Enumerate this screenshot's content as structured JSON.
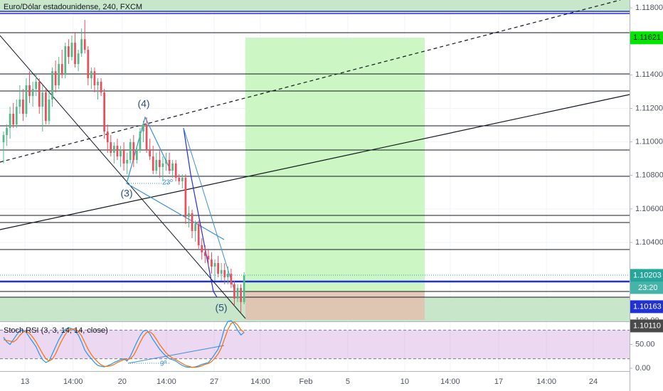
{
  "chart_data": [
    {
      "type": "candlestick",
      "title": "Euro/Dólar estadounidense, 240, FXCM",
      "up_color": "#53b987",
      "down_color": "#eb4d5c",
      "ohlc": [
        [
          1.10998,
          1.11062,
          1.10871,
          1.11041
        ],
        [
          1.11041,
          1.11104,
          1.10977,
          1.11083
        ],
        [
          1.11083,
          1.1121,
          1.11019,
          1.11168
        ],
        [
          1.11168,
          1.11232,
          1.11083,
          1.11104
        ],
        [
          1.11104,
          1.11253,
          1.11083,
          1.1121
        ],
        [
          1.1121,
          1.11338,
          1.11168,
          1.11253
        ],
        [
          1.11253,
          1.11316,
          1.11125,
          1.11168
        ],
        [
          1.11168,
          1.1138,
          1.11147,
          1.11338
        ],
        [
          1.11338,
          1.11422,
          1.11232,
          1.11274
        ],
        [
          1.11274,
          1.11359,
          1.1121,
          1.11316
        ],
        [
          1.11316,
          1.11401,
          1.11274,
          1.11359
        ],
        [
          1.11359,
          1.1138,
          1.11168,
          1.1121
        ],
        [
          1.1121,
          1.11338,
          1.11062,
          1.11295
        ],
        [
          1.11295,
          1.11316,
          1.11104,
          1.11125
        ],
        [
          1.11125,
          1.11295,
          1.11104,
          1.11253
        ],
        [
          1.11253,
          1.11444,
          1.1121,
          1.11422
        ],
        [
          1.11422,
          1.11486,
          1.11295,
          1.11338
        ],
        [
          1.11338,
          1.11507,
          1.11316,
          1.11465
        ],
        [
          1.11465,
          1.1155,
          1.1138,
          1.11401
        ],
        [
          1.11401,
          1.11592,
          1.1138,
          1.11571
        ],
        [
          1.11571,
          1.11613,
          1.11465,
          1.11507
        ],
        [
          1.11507,
          1.11635,
          1.11486,
          1.11592
        ],
        [
          1.11592,
          1.11656,
          1.11444,
          1.11465
        ],
        [
          1.11465,
          1.1155,
          1.11422,
          1.11528
        ],
        [
          1.11528,
          1.11677,
          1.11507,
          1.11613
        ],
        [
          1.11613,
          1.11728,
          1.11528,
          1.1155
        ],
        [
          1.1155,
          1.11571,
          1.11338,
          1.1138
        ],
        [
          1.1138,
          1.11444,
          1.11316,
          1.11422
        ],
        [
          1.11422,
          1.11444,
          1.11295,
          1.11338
        ],
        [
          1.11338,
          1.1138,
          1.11253,
          1.11359
        ],
        [
          1.11359,
          1.1138,
          1.11274,
          1.11295
        ],
        [
          1.11295,
          1.11316,
          1.11019,
          1.11062
        ],
        [
          1.11062,
          1.11104,
          1.10935,
          1.10998
        ],
        [
          1.10998,
          1.11041,
          1.10913,
          1.10935
        ],
        [
          1.10935,
          1.10998,
          1.10871,
          1.10977
        ],
        [
          1.10977,
          1.11019,
          1.10892,
          1.10913
        ],
        [
          1.10913,
          1.10977,
          1.1085,
          1.10956
        ],
        [
          1.10956,
          1.10998,
          1.10828,
          1.10871
        ],
        [
          1.10871,
          1.10935,
          1.10807,
          1.10892
        ],
        [
          1.10892,
          1.11019,
          1.10871,
          1.10998
        ],
        [
          1.10998,
          1.11041,
          1.1085,
          1.10892
        ],
        [
          1.10892,
          1.10977,
          1.10871,
          1.10956
        ],
        [
          1.10956,
          1.11083,
          1.10935,
          1.11062
        ],
        [
          1.11062,
          1.11125,
          1.10998,
          1.11104
        ],
        [
          1.11104,
          1.11147,
          1.10935,
          1.10956
        ],
        [
          1.10956,
          1.11019,
          1.10892,
          1.10913
        ],
        [
          1.10913,
          1.10977,
          1.10807,
          1.10828
        ],
        [
          1.10828,
          1.10935,
          1.10807,
          1.10892
        ],
        [
          1.10892,
          1.10956,
          1.10786,
          1.1085
        ],
        [
          1.1085,
          1.10913,
          1.10765,
          1.10871
        ],
        [
          1.10871,
          1.10935,
          1.10828,
          1.10892
        ],
        [
          1.10892,
          1.10935,
          1.10807,
          1.10828
        ],
        [
          1.10828,
          1.10892,
          1.10786,
          1.10871
        ],
        [
          1.10871,
          1.10892,
          1.10765,
          1.10786
        ],
        [
          1.10786,
          1.10807,
          1.10744,
          1.10765
        ],
        [
          1.10765,
          1.10807,
          1.10722,
          1.10786
        ],
        [
          1.10786,
          1.10807,
          1.1051,
          1.10553
        ],
        [
          1.10553,
          1.10616,
          1.10489,
          1.10574
        ],
        [
          1.10574,
          1.10595,
          1.10425,
          1.10468
        ],
        [
          1.10468,
          1.10531,
          1.10404,
          1.1051
        ],
        [
          1.1051,
          1.10531,
          1.10362,
          1.10383
        ],
        [
          1.10383,
          1.10425,
          1.10298,
          1.10341
        ],
        [
          1.10341,
          1.10383,
          1.10277,
          1.1032
        ],
        [
          1.1032,
          1.10362,
          1.10256,
          1.10298
        ],
        [
          1.10298,
          1.10341,
          1.10213,
          1.10256
        ],
        [
          1.10256,
          1.10298,
          1.10171,
          1.10277
        ],
        [
          1.10277,
          1.1032,
          1.10192,
          1.10213
        ],
        [
          1.10213,
          1.10277,
          1.10171,
          1.10235
        ],
        [
          1.10235,
          1.10277,
          1.1015,
          1.10192
        ],
        [
          1.10192,
          1.10256,
          1.1015,
          1.10213
        ],
        [
          1.10213,
          1.10243,
          1.10128,
          1.1015
        ],
        [
          1.1015,
          1.10171,
          1.10023,
          1.10065
        ],
        [
          1.10065,
          1.1015,
          1.10044,
          1.10128
        ],
        [
          1.10128,
          1.1015,
          1.0998,
          1.10044
        ],
        [
          1.10044,
          1.10222,
          1.10031,
          1.10203
        ]
      ],
      "xlim": [
        -1.09,
        192.56
      ],
      "xticks": [
        {
          "value": 6.6,
          "label": "13"
        },
        {
          "value": 21.4,
          "label": "14:00"
        },
        {
          "value": 36.5,
          "label": "20"
        },
        {
          "value": 50.1,
          "label": "14:00"
        },
        {
          "value": 64.8,
          "label": "27"
        },
        {
          "value": 79,
          "label": "14:00"
        },
        {
          "value": 93,
          "label": "Feb"
        },
        {
          "value": 105.9,
          "label": "5"
        },
        {
          "value": 123.4,
          "label": "10"
        },
        {
          "value": 137.4,
          "label": "14:00"
        },
        {
          "value": 152.3,
          "label": "17"
        },
        {
          "value": 167,
          "label": "14:00"
        },
        {
          "value": 181.4,
          "label": "24"
        }
      ],
      "ylim": [
        1.09929,
        1.11847
      ],
      "yticks": [
        {
          "value": 1.118,
          "label": "1.11800"
        },
        {
          "value": 1.114,
          "label": "1.11400"
        },
        {
          "value": 1.112,
          "label": "1.11200"
        },
        {
          "value": 1.11,
          "label": "1.11000"
        },
        {
          "value": 1.108,
          "label": "1.10800"
        },
        {
          "value": 1.106,
          "label": "1.10600"
        },
        {
          "value": 1.104,
          "label": "1.10400"
        }
      ],
      "grid": true,
      "price_labels": [
        {
          "value": 1.11621,
          "label": "1.11621",
          "color": "#00e600",
          "text_color": "#131722"
        },
        {
          "value": 1.10203,
          "label": "1.10203",
          "countdown": "23:20",
          "color": "#26a69a",
          "text_color": "#ffffff"
        },
        {
          "value": 1.10163,
          "label": "1.10163",
          "color": "#2131d6",
          "text_color": "#ffffff"
        },
        {
          "value": 1.1011,
          "label": "1.10110",
          "color": "#4a4a4a",
          "text_color": "#ffffff"
        }
      ],
      "annotations": [
        "(4)",
        "(3)",
        "(5)",
        "23º"
      ]
    },
    {
      "type": "line",
      "title": "Stoch RSI (3, 3, 14, 14, close)",
      "series": [
        {
          "color": "#2196f3",
          "values": [
            65,
            55,
            50,
            60,
            70,
            78,
            80,
            75,
            65,
            55,
            45,
            30,
            18,
            12,
            15,
            30,
            45,
            60,
            72,
            82,
            85,
            83,
            78,
            70,
            55,
            38,
            28,
            20,
            12,
            6,
            4,
            3,
            5,
            8,
            12,
            15,
            18,
            20,
            15,
            25,
            40,
            55,
            68,
            78,
            80,
            72,
            60,
            50,
            40,
            32,
            25,
            20,
            18,
            15,
            10,
            6,
            3,
            2,
            2,
            3,
            5,
            8,
            10,
            12,
            20,
            30,
            40,
            60,
            85,
            98,
            100,
            92,
            80,
            70,
            75
          ]
        },
        {
          "color": "#ff6d00",
          "values": [
            60,
            58,
            57,
            55,
            60,
            69,
            76,
            78,
            73,
            65,
            55,
            43,
            31,
            20,
            15,
            19,
            30,
            45,
            59,
            71,
            80,
            83,
            82,
            77,
            68,
            54,
            40,
            29,
            20,
            13,
            7,
            4,
            4,
            5,
            8,
            12,
            15,
            18,
            18,
            20,
            27,
            40,
            54,
            67,
            75,
            77,
            71,
            61,
            50,
            41,
            32,
            26,
            21,
            18,
            14,
            10,
            6,
            4,
            2,
            2,
            3,
            5,
            8,
            10,
            14,
            21,
            30,
            43,
            62,
            81,
            94,
            97,
            91,
            81,
            75
          ]
        }
      ],
      "ylim": [
        -6,
        100
      ],
      "yticks": [
        {
          "value": 100,
          "label": "100.00"
        },
        {
          "value": 50,
          "label": "50.00"
        },
        {
          "value": 0,
          "label": "0.00"
        }
      ],
      "bands": [
        80,
        20
      ],
      "band_color": "#9c27b0",
      "annotations": [
        "9º"
      ]
    }
  ]
}
